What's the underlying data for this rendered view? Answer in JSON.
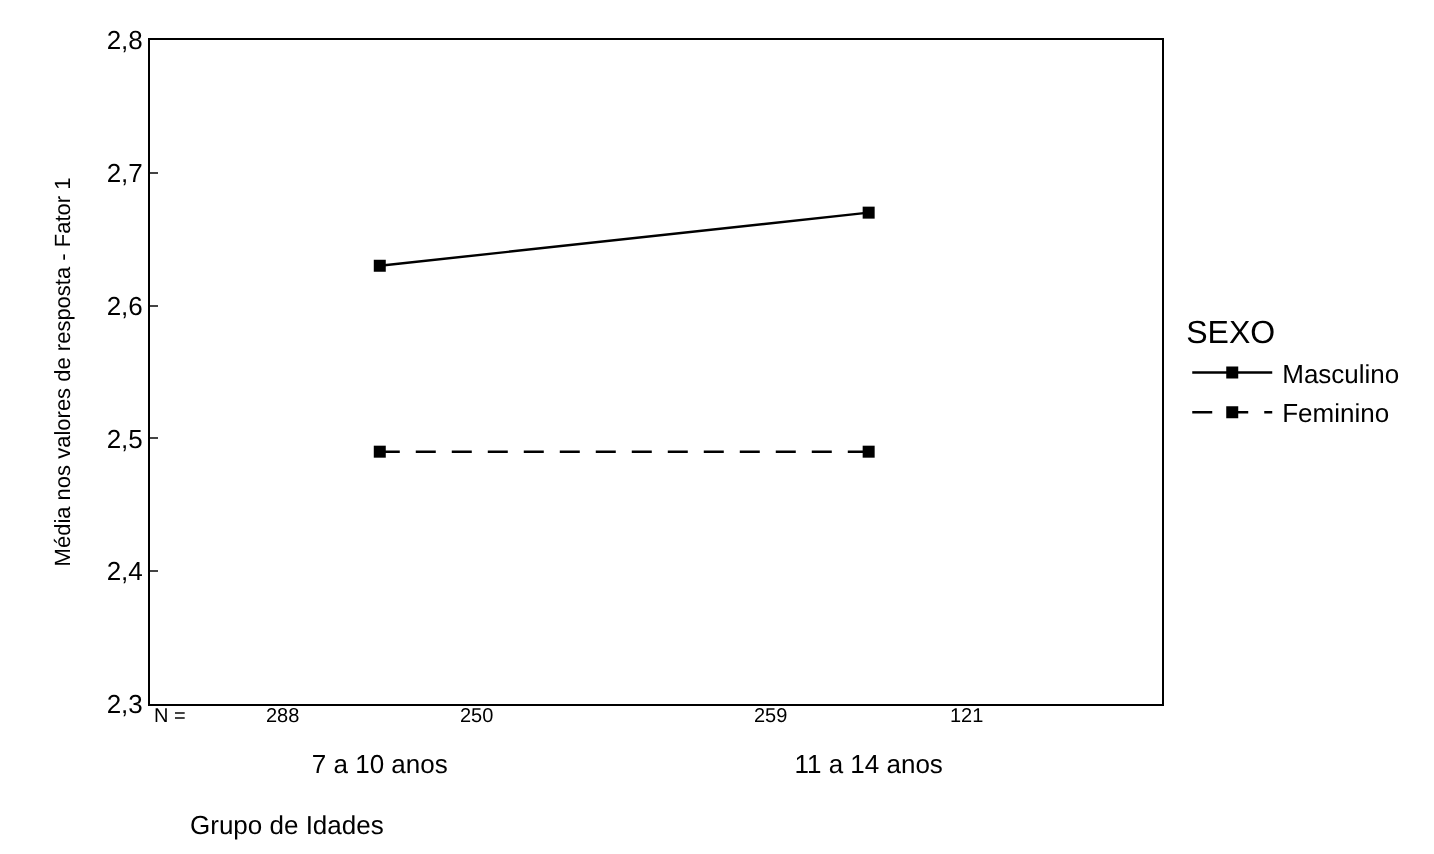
{
  "chart_data": {
    "type": "line",
    "categories": [
      "7 a 10 anos",
      "11 a 14 anos"
    ],
    "series": [
      {
        "name": "Masculino",
        "color": "#000000",
        "values": [
          2.63,
          2.67
        ],
        "line_style": "solid"
      },
      {
        "name": "Feminino",
        "color": "#000000",
        "values": [
          2.49,
          2.49
        ],
        "line_style": "dashed"
      }
    ],
    "ylim": [
      2.3,
      2.8
    ],
    "yticks": [
      {
        "value": 2.3,
        "label": "2,3"
      },
      {
        "value": 2.4,
        "label": "2,4"
      },
      {
        "value": 2.5,
        "label": "2,5"
      },
      {
        "value": 2.6,
        "label": "2,6"
      },
      {
        "value": 2.7,
        "label": "2,7"
      },
      {
        "value": 2.8,
        "label": "2,8"
      }
    ],
    "xlabel": "Grupo de Idades",
    "ylabel": "Média nos valores de resposta - Fator 1",
    "legend_title": "SEXO",
    "legend": "right",
    "marker": "square",
    "annotations": [
      "N =",
      "288",
      "250",
      "259",
      "121"
    ]
  }
}
